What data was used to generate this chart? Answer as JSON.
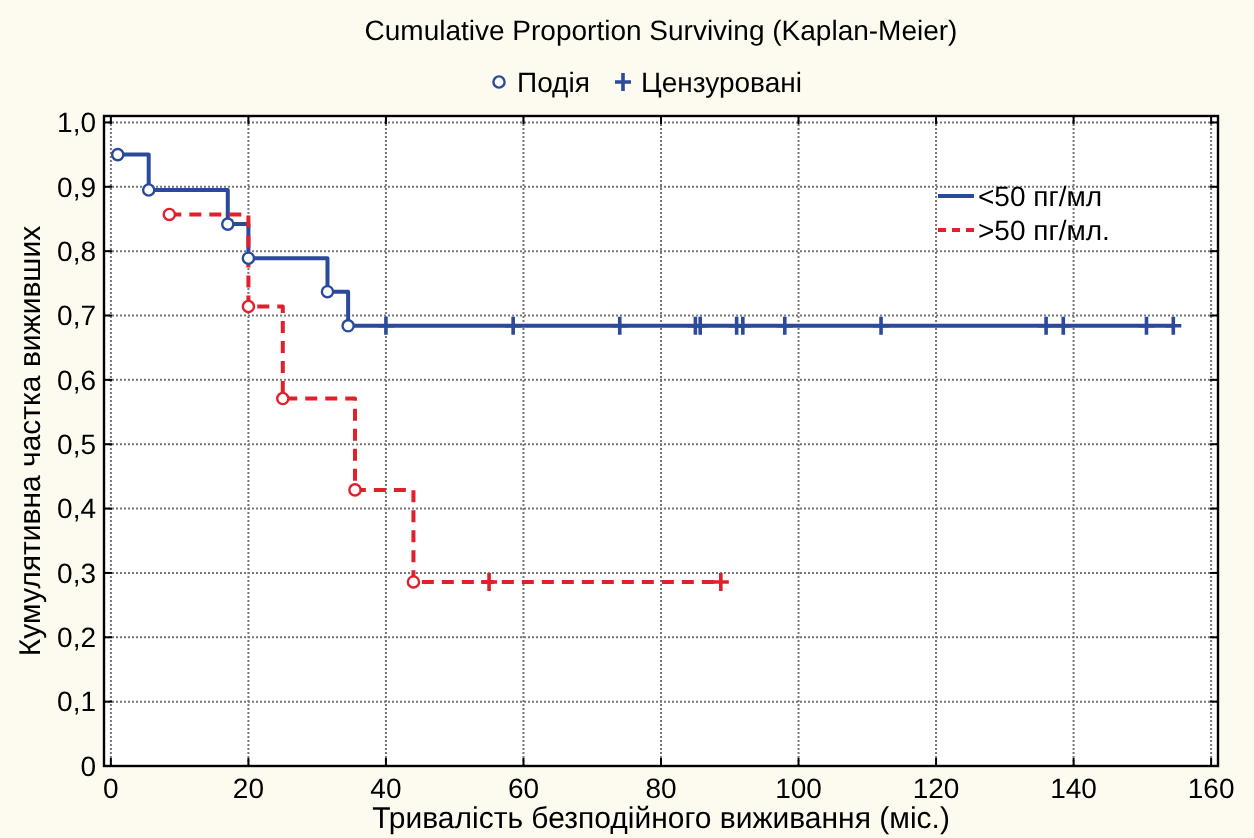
{
  "chart_data": {
    "type": "step",
    "title": "Cumulative Proportion Surviving (Kaplan-Meier)",
    "xlabel": "Тривалість безподійного виживання (міс.)",
    "ylabel": "Кумулятивна частка виживших",
    "xlim": [
      -1,
      161
    ],
    "xticks": [
      0,
      20,
      40,
      60,
      80,
      100,
      120,
      140,
      160
    ],
    "ylim": [
      0,
      1.01
    ],
    "yticks": [
      0,
      {
        "value": 0.1,
        "label": "0,1"
      },
      {
        "value": 0.2,
        "label": "0,2"
      },
      {
        "value": 0.3,
        "label": "0,3"
      },
      {
        "value": 0.4,
        "label": "0,4"
      },
      {
        "value": 0.5,
        "label": "0,5"
      },
      {
        "value": 0.6,
        "label": "0,6"
      },
      {
        "value": 0.7,
        "label": "0,7"
      },
      {
        "value": 0.8,
        "label": "0,8"
      },
      {
        "value": 0.9,
        "label": "0,9"
      },
      {
        "value": 1.0,
        "label": "1,0"
      }
    ],
    "grid": true,
    "legend": "top right",
    "series": [
      {
        "name": "<50 пг/мл",
        "color": "#2b4a9b",
        "line_style": "solid",
        "x": [
          1,
          5.5,
          17,
          20,
          31.5,
          34.5,
          154.5
        ],
        "values": [
          0.95,
          0.895,
          0.842,
          0.789,
          0.737,
          0.684,
          0.684
        ]
      },
      {
        "name": ">50 пг/мл.",
        "color": "#e0202a",
        "line_style": "dashed",
        "x": [
          8.5,
          20,
          25,
          35.5,
          44,
          88.7
        ],
        "values": [
          0.857,
          0.714,
          0.571,
          0.429,
          0.286,
          0.286
        ]
      },
      {
        "type": "scatter",
        "name": "Подія",
        "marker": "circle",
        "color": "#2b4a9b",
        "x": [
          1,
          5.5,
          17,
          20,
          31.5,
          34.5,
          8.5,
          20,
          25,
          35.5,
          44
        ],
        "values": [
          0.95,
          0.895,
          0.842,
          0.789,
          0.737,
          0.684,
          0.857,
          0.714,
          0.571,
          0.429,
          0.286
        ],
        "colors": [
          "#2b4a9b",
          "#2b4a9b",
          "#2b4a9b",
          "#2b4a9b",
          "#2b4a9b",
          "#2b4a9b",
          "#e0202a",
          "#e0202a",
          "#e0202a",
          "#e0202a",
          "#e0202a"
        ]
      },
      {
        "type": "scatter",
        "name": "Цензуровані",
        "marker": "cross",
        "color": "#2b4a9b",
        "x": [
          40,
          58.5,
          74,
          85,
          85.7,
          91,
          91.9,
          98,
          112,
          136,
          138.5,
          150.6,
          154.5,
          55,
          88.7
        ],
        "values": [
          0.684,
          0.684,
          0.684,
          0.684,
          0.684,
          0.684,
          0.684,
          0.684,
          0.684,
          0.684,
          0.684,
          0.684,
          0.684,
          0.286,
          0.286
        ],
        "colors": [
          "#2b4a9b",
          "#2b4a9b",
          "#2b4a9b",
          "#2b4a9b",
          "#2b4a9b",
          "#2b4a9b",
          "#2b4a9b",
          "#2b4a9b",
          "#2b4a9b",
          "#2b4a9b",
          "#2b4a9b",
          "#2b4a9b",
          "#2b4a9b",
          "#e0202a",
          "#e0202a"
        ]
      }
    ]
  }
}
